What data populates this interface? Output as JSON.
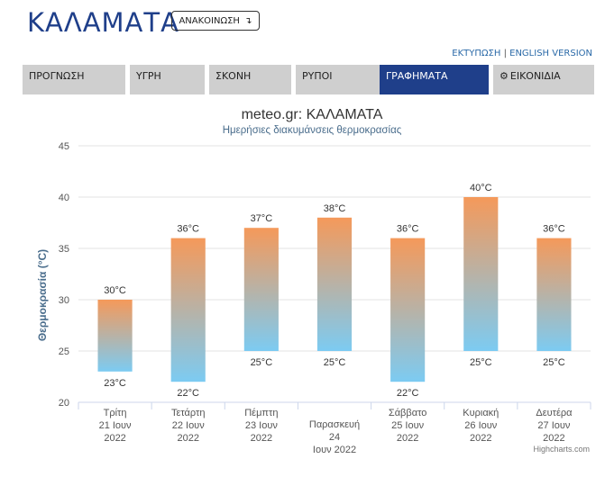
{
  "header": {
    "city": "ΚΑΛΑΜΑΤΑ",
    "announcement_label": "ΑΝΑΚΟΙΝΩΣΗ",
    "announcement_icon": "arrow-down-icon"
  },
  "toplinks": {
    "print": "ΕΚΤΥΠΩΣΗ",
    "separator": "|",
    "english": "ENGLISH VERSION"
  },
  "tabs": [
    {
      "label": "ΠΡΟΓΝΩΣΗ"
    },
    {
      "label": "ΥΓΡΗ"
    },
    {
      "label": "ΣΚΟΝΗ"
    },
    {
      "label": "ΡΥΠΟΙ"
    },
    {
      "label": "ΓΡΑΦΗΜΑΤΑ",
      "active": true
    },
    {
      "label": "ΕΙΚΟΝΙΔΙΑ",
      "icon": "gear-icon"
    }
  ],
  "colors": {
    "brand": "#1f3f8a",
    "bar_top": "#f5995a",
    "bar_bottom": "#7ccbf2",
    "tab_bg": "#cfcfcf"
  },
  "chart_data": {
    "type": "bar",
    "subtype": "columnrange",
    "title": "meteo.gr: ΚΑΛΑΜΑΤΑ",
    "subtitle": "Ημερήσιες διακυμάνσεις θερμοκρασίας",
    "ylabel": "Θερμοκρασία (°C)",
    "ylim": [
      20,
      45
    ],
    "yticks": [
      "20",
      "25",
      "30",
      "35",
      "40",
      "45"
    ],
    "grid": true,
    "categories": [
      [
        "Τρίτη",
        "21 Ιουν",
        "2022"
      ],
      [
        "Τετάρτη",
        "22 Ιουν",
        "2022"
      ],
      [
        "Πέμπτη",
        "23 Ιουν",
        "2022"
      ],
      [
        "Παρασκευή",
        "24",
        "Ιουν 2022"
      ],
      [
        "Σάββατο",
        "25 Ιουν",
        "2022"
      ],
      [
        "Κυριακή",
        "26 Ιουν",
        "2022"
      ],
      [
        "Δευτέρα",
        "27 Ιουν",
        "2022"
      ]
    ],
    "low": [
      23,
      22,
      25,
      25,
      22,
      25,
      25
    ],
    "high": [
      30,
      36,
      37,
      38,
      36,
      40,
      36
    ],
    "low_labels": [
      "23°C",
      "22°C",
      "25°C",
      "25°C",
      "22°C",
      "25°C",
      "25°C"
    ],
    "high_labels": [
      "30°C",
      "36°C",
      "37°C",
      "38°C",
      "36°C",
      "40°C",
      "36°C"
    ],
    "credits": "Highcharts.com"
  }
}
